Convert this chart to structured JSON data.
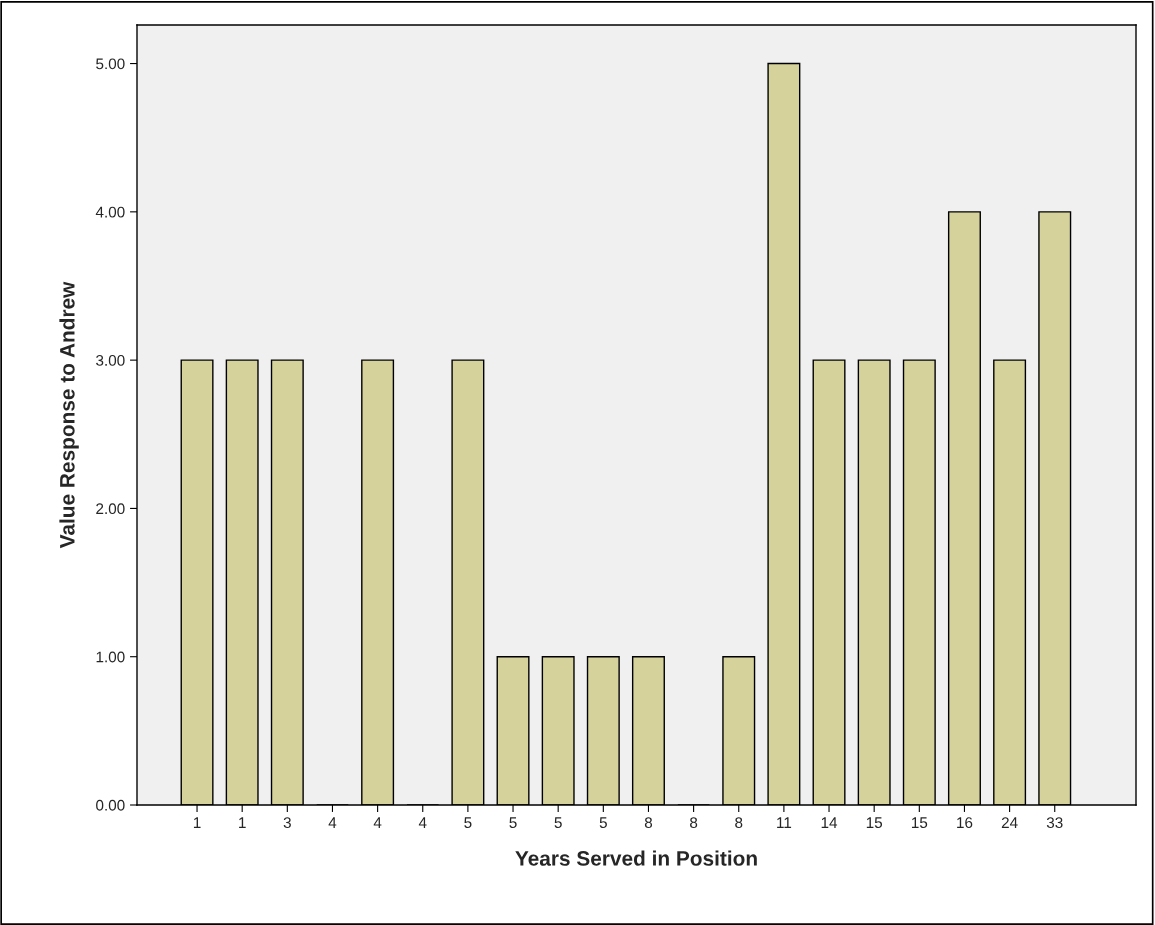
{
  "chart_data": {
    "type": "bar",
    "xlabel": "Years Served in Position",
    "ylabel": "Value Response to Andrew",
    "categories": [
      "1",
      "1",
      "3",
      "4",
      "4",
      "4",
      "5",
      "5",
      "5",
      "5",
      "8",
      "8",
      "8",
      "11",
      "14",
      "15",
      "15",
      "16",
      "24",
      "33"
    ],
    "values": [
      3,
      3,
      3,
      0,
      3,
      0,
      3,
      1,
      1,
      1,
      1,
      0,
      1,
      5,
      3,
      3,
      3,
      4,
      3,
      4
    ],
    "color": "#d6d29b",
    "ylim": [
      0,
      5.26
    ],
    "yticks": [
      {
        "value": 0,
        "label": "0.00"
      },
      {
        "value": 1,
        "label": "1.00"
      },
      {
        "value": 2,
        "label": "2.00"
      },
      {
        "value": 3,
        "label": "3.00"
      },
      {
        "value": 4,
        "label": "4.00"
      },
      {
        "value": 5,
        "label": "5.00"
      }
    ],
    "grid": false
  }
}
